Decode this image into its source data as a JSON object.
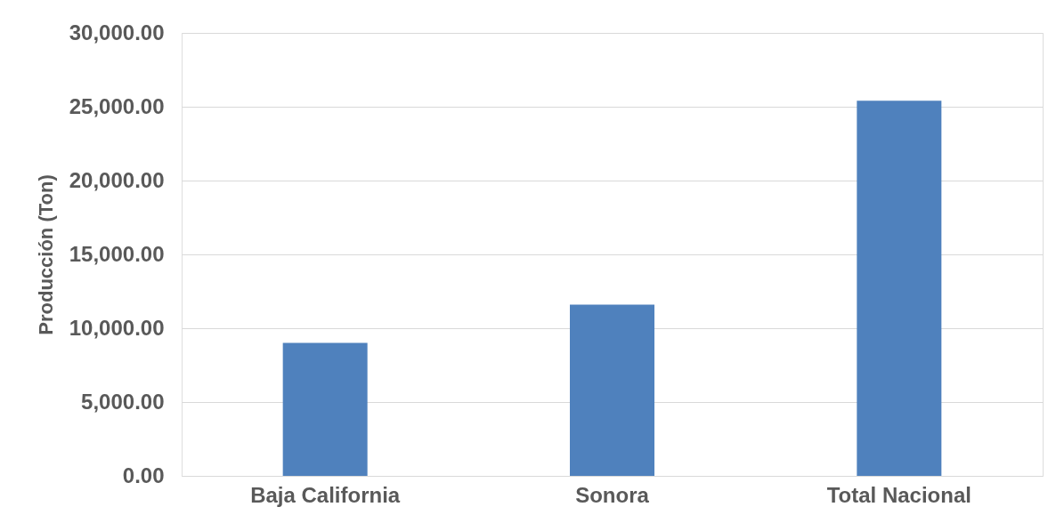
{
  "chart_data": {
    "type": "bar",
    "ylabel": "Producción (Ton)",
    "categories": [
      "Baja California",
      "Sonora",
      "Total Nacional"
    ],
    "values": [
      9000,
      11600,
      25400
    ],
    "color": "#4f81bd",
    "ylim": [
      0,
      30000
    ],
    "yticks": [
      {
        "value": 0,
        "label": "0.00"
      },
      {
        "value": 5000,
        "label": "5,000.00"
      },
      {
        "value": 10000,
        "label": "10,000.00"
      },
      {
        "value": 15000,
        "label": "15,000.00"
      },
      {
        "value": 20000,
        "label": "20,000.00"
      },
      {
        "value": 25000,
        "label": "25,000.00"
      },
      {
        "value": 30000,
        "label": "30,000.00"
      }
    ],
    "grid": "y"
  }
}
